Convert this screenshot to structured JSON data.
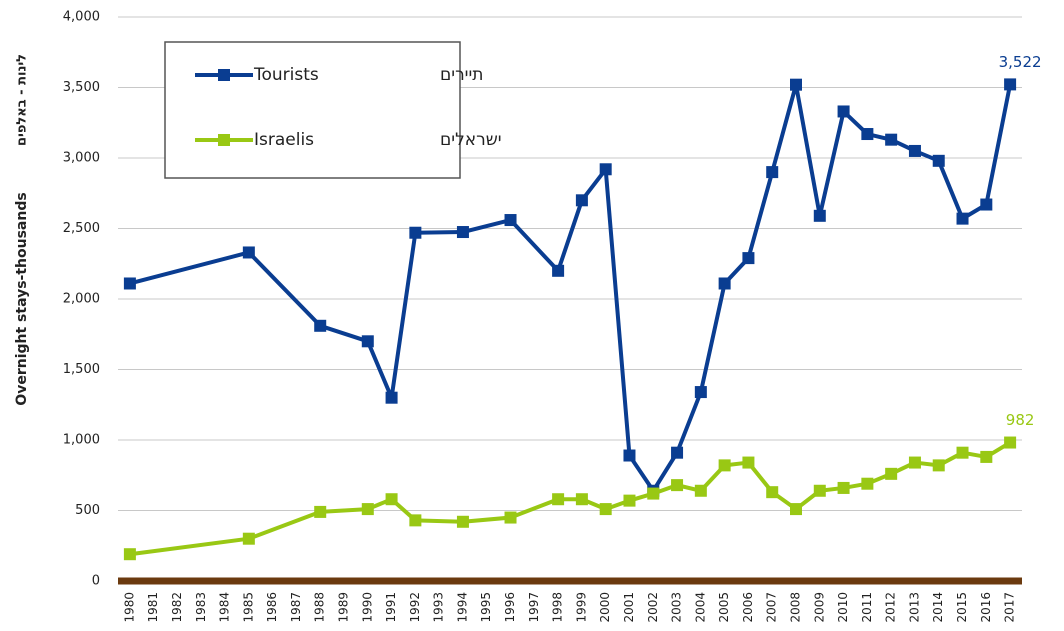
{
  "chart_data": {
    "type": "line",
    "ylabel": "Overnight stays-thousands",
    "ylabel_he": "לינות - באלפים",
    "x": [
      1980,
      1985,
      1988,
      1990,
      1991,
      1992,
      1994,
      1996,
      1998,
      1999,
      2000,
      2001,
      2002,
      2003,
      2004,
      2005,
      2006,
      2007,
      2008,
      2009,
      2010,
      2011,
      2012,
      2013,
      2014,
      2015,
      2016,
      2017
    ],
    "series": [
      {
        "name": "Tourists",
        "name_he": "תיירים",
        "color": "#0a3d91",
        "values": [
          2110,
          2330,
          1810,
          1700,
          1300,
          2470,
          2475,
          2560,
          2200,
          2700,
          2920,
          890,
          640,
          910,
          1340,
          2110,
          2290,
          2900,
          3520,
          2590,
          3330,
          3170,
          3130,
          3050,
          2980,
          2570,
          2670,
          3522
        ],
        "value_labels": [
          null,
          null,
          null,
          null,
          null,
          null,
          null,
          null,
          null,
          null,
          null,
          null,
          null,
          null,
          null,
          null,
          null,
          null,
          null,
          null,
          null,
          null,
          null,
          null,
          null,
          null,
          null,
          "3,522"
        ]
      },
      {
        "name": "Israelis",
        "name_he": "ישראלים",
        "color": "#99c814",
        "values": [
          190,
          300,
          490,
          510,
          580,
          430,
          420,
          450,
          580,
          580,
          510,
          570,
          620,
          680,
          640,
          820,
          840,
          630,
          510,
          640,
          660,
          690,
          760,
          840,
          820,
          910,
          880,
          982
        ],
        "value_labels": [
          null,
          null,
          null,
          null,
          null,
          null,
          null,
          null,
          null,
          null,
          null,
          null,
          null,
          null,
          null,
          null,
          null,
          null,
          null,
          null,
          null,
          null,
          null,
          null,
          null,
          null,
          null,
          "982"
        ]
      }
    ],
    "xlim": [
      1979.5,
      2017.5
    ],
    "xticks": [
      1980,
      1981,
      1982,
      1983,
      1984,
      1985,
      1986,
      1987,
      1988,
      1989,
      1990,
      1991,
      1992,
      1993,
      1994,
      1995,
      1996,
      1997,
      1998,
      1999,
      2000,
      2001,
      2002,
      2003,
      2004,
      2005,
      2006,
      2007,
      2008,
      2009,
      2010,
      2011,
      2012,
      2013,
      2014,
      2015,
      2016,
      2017
    ],
    "ylim": [
      0,
      4000
    ],
    "yticks": [
      0,
      500,
      {
        "value": 1000,
        "label": "1,000"
      },
      {
        "value": 1500,
        "label": "1,500"
      },
      {
        "value": 2000,
        "label": "2,000"
      },
      {
        "value": 2500,
        "label": "2,500"
      },
      {
        "value": 3000,
        "label": "3,000"
      },
      {
        "value": 3500,
        "label": "3,500"
      },
      {
        "value": 4000,
        "label": "4,000"
      }
    ],
    "grid": true,
    "axis_color": "#6b3a0f",
    "legend": "upper left"
  }
}
